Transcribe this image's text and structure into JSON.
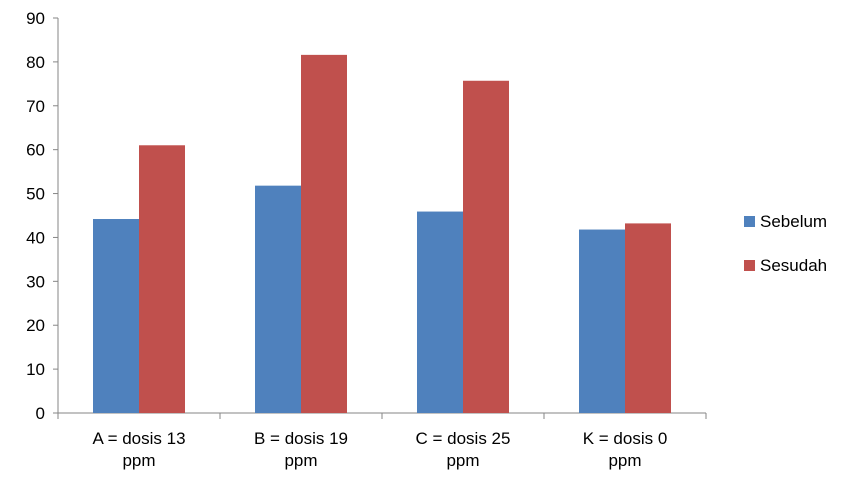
{
  "chart_data": {
    "type": "bar",
    "title": "",
    "xlabel": "",
    "ylabel": "",
    "categories": [
      [
        "A = dosis 13",
        "ppm"
      ],
      [
        "B = dosis 19",
        "ppm"
      ],
      [
        "C = dosis 25",
        "ppm"
      ],
      [
        "K = dosis 0",
        "ppm"
      ]
    ],
    "series": [
      {
        "name": "Sebelum",
        "color": "#4F81BD",
        "values": [
          44.2,
          51.8,
          45.9,
          41.8
        ]
      },
      {
        "name": "Sesudah",
        "color": "#C0504D",
        "values": [
          61.0,
          81.6,
          75.7,
          43.2
        ]
      }
    ],
    "ylim": [
      0,
      90
    ],
    "yticks": [
      0,
      10,
      20,
      30,
      40,
      50,
      60,
      70,
      80,
      90
    ],
    "grid": false,
    "legend": "right"
  }
}
